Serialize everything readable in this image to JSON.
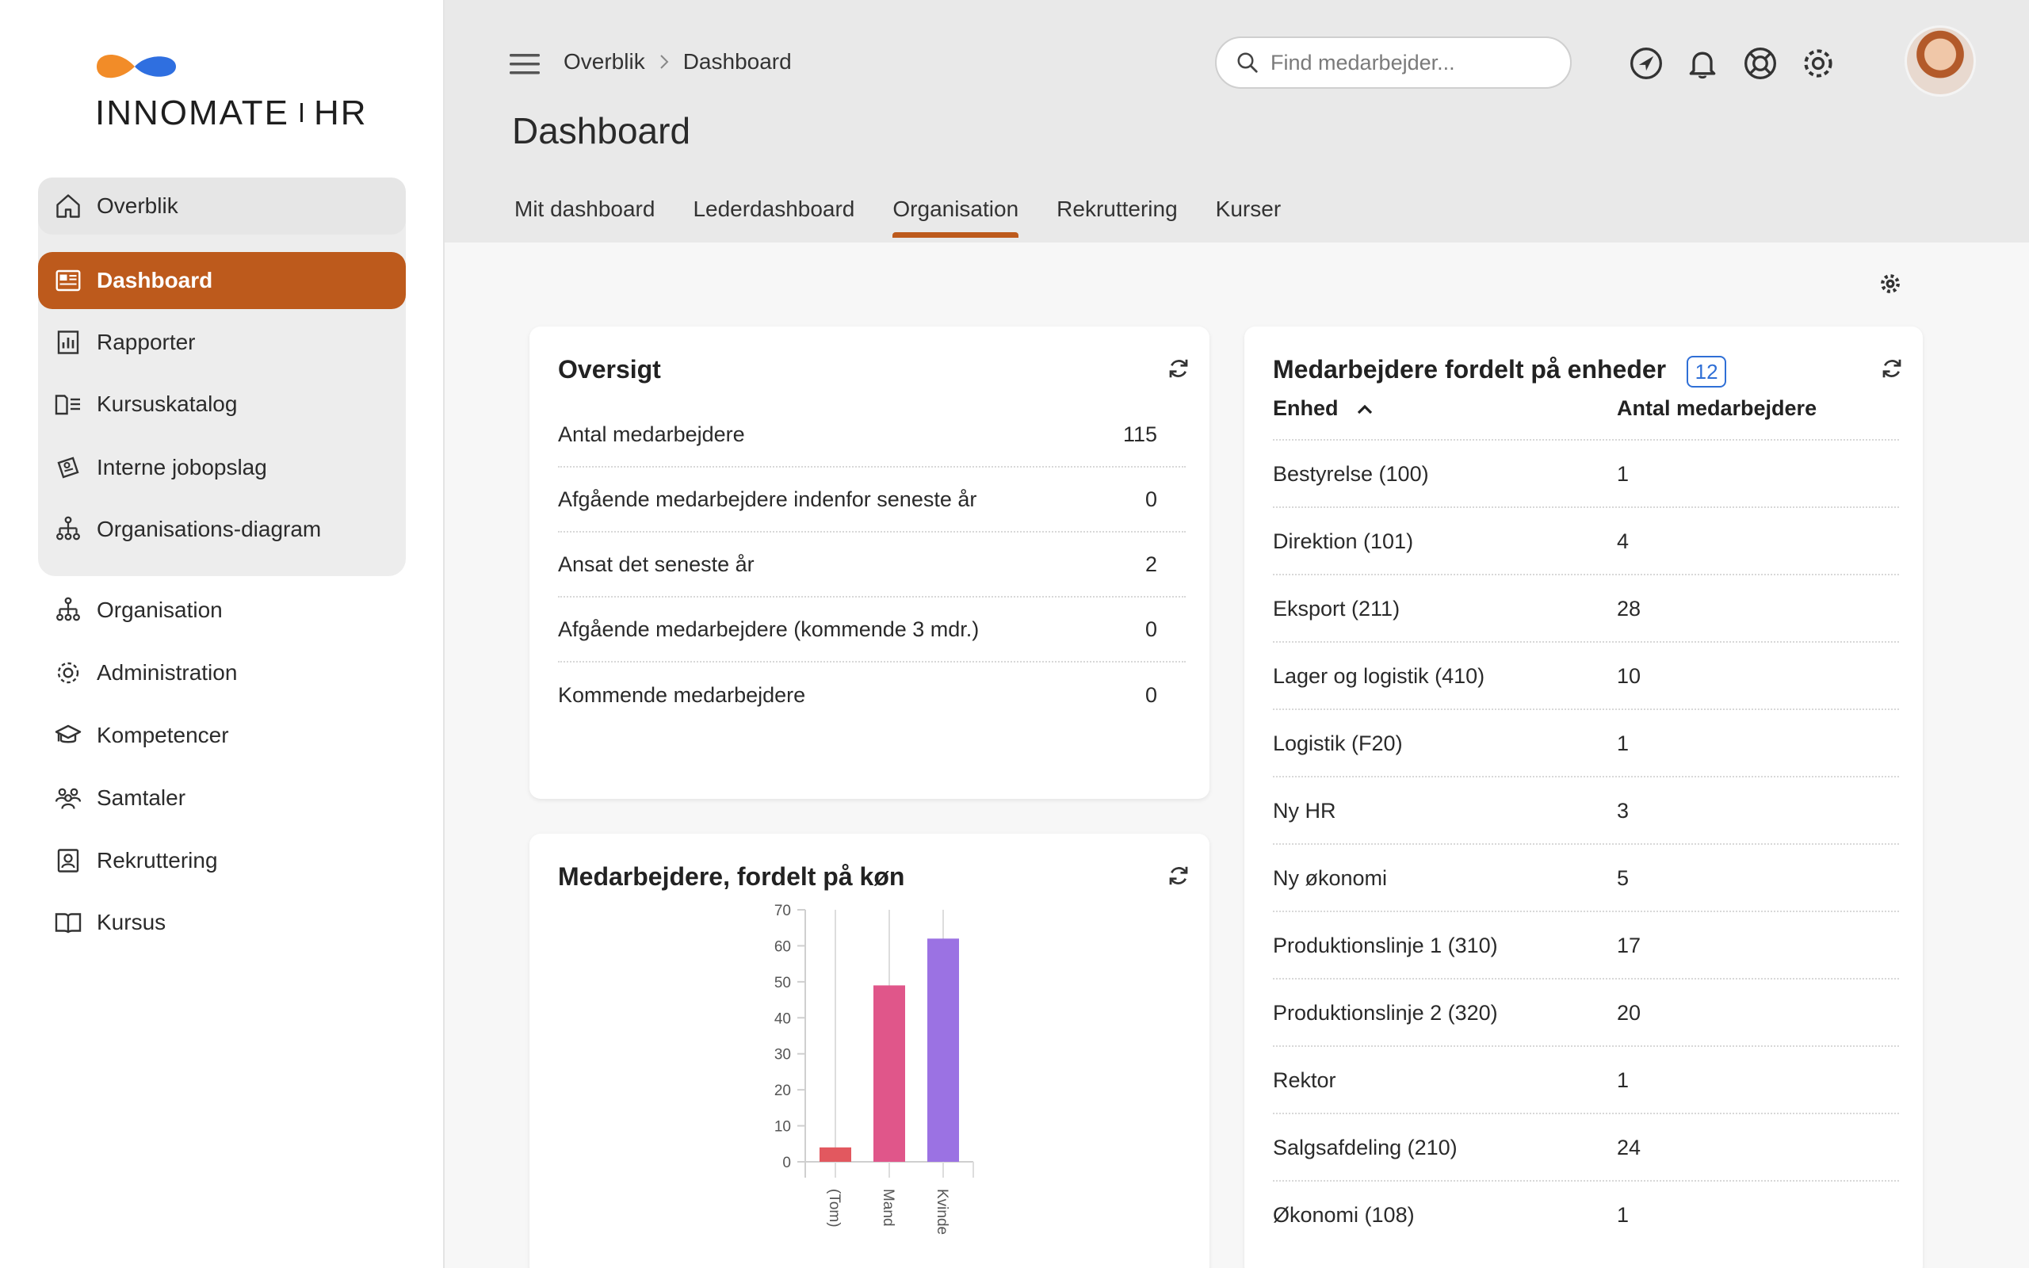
{
  "brand": {
    "name": "INNOMATE",
    "suffix": "HR"
  },
  "sidebar": {
    "group_items": [
      {
        "label": "Overblik",
        "icon": "home-icon"
      },
      {
        "label": "Dashboard",
        "icon": "dashboard-icon"
      },
      {
        "label": "Rapporter",
        "icon": "report-icon"
      },
      {
        "label": "Kursuskatalog",
        "icon": "catalog-icon"
      },
      {
        "label": "Interne jobopslag",
        "icon": "job-post-icon"
      },
      {
        "label": "Organisations-diagram",
        "icon": "org-chart-icon"
      }
    ],
    "items": [
      {
        "label": "Organisation",
        "icon": "org-chart-icon"
      },
      {
        "label": "Administration",
        "icon": "gear-icon"
      },
      {
        "label": "Kompetencer",
        "icon": "graduation-cap-icon"
      },
      {
        "label": "Samtaler",
        "icon": "people-icon"
      },
      {
        "label": "Rekruttering",
        "icon": "recruit-icon"
      },
      {
        "label": "Kursus",
        "icon": "book-icon"
      }
    ],
    "active_color": "#bd5a1c"
  },
  "header": {
    "breadcrumb": [
      "Overblik",
      "Dashboard"
    ],
    "title": "Dashboard",
    "search_placeholder": "Find medarbejder...",
    "icons": [
      "navigate-icon",
      "bell-icon",
      "lifebuoy-icon",
      "gear-icon"
    ],
    "tabs": [
      {
        "label": "Mit dashboard",
        "active": false
      },
      {
        "label": "Lederdashboard",
        "active": false
      },
      {
        "label": "Organisation",
        "active": true
      },
      {
        "label": "Rekruttering",
        "active": false
      },
      {
        "label": "Kurser",
        "active": false
      }
    ]
  },
  "overview": {
    "title": "Oversigt",
    "rows": [
      {
        "label": "Antal medarbejdere",
        "value": "115"
      },
      {
        "label": "Afgående medarbejdere indenfor seneste år",
        "value": "0"
      },
      {
        "label": "Ansat det seneste år",
        "value": "2"
      },
      {
        "label": "Afgående medarbejdere (kommende 3 mdr.)",
        "value": "0"
      },
      {
        "label": "Kommende medarbejdere",
        "value": "0"
      }
    ]
  },
  "units": {
    "title": "Medarbejdere fordelt på enheder",
    "count": "12",
    "col_unit": "Enhed",
    "col_count": "Antal medarbejdere",
    "rows": [
      {
        "unit": "Bestyrelse (100)",
        "count": "1"
      },
      {
        "unit": "Direktion (101)",
        "count": "4"
      },
      {
        "unit": "Eksport (211)",
        "count": "28"
      },
      {
        "unit": "Lager og logistik (410)",
        "count": "10"
      },
      {
        "unit": "Logistik (F20)",
        "count": "1"
      },
      {
        "unit": "Ny HR",
        "count": "3"
      },
      {
        "unit": "Ny økonomi",
        "count": "5"
      },
      {
        "unit": "Produktionslinje 1 (310)",
        "count": "17"
      },
      {
        "unit": "Produktionslinje 2 (320)",
        "count": "20"
      },
      {
        "unit": "Rektor",
        "count": "1"
      },
      {
        "unit": "Salgsafdeling (210)",
        "count": "24"
      },
      {
        "unit": "Økonomi (108)",
        "count": "1"
      }
    ]
  },
  "gender_card": {
    "title": "Medarbejdere, fordelt på køn"
  },
  "chart_data": {
    "type": "bar",
    "title": "Medarbejdere, fordelt på køn",
    "categories": [
      "(Tom)",
      "Mand",
      "Kvinde"
    ],
    "values": [
      4,
      49,
      62
    ],
    "colors": [
      "#e2585f",
      "#e0568a",
      "#9b72e3"
    ],
    "yticks": [
      "0",
      "10",
      "20",
      "30",
      "40",
      "50",
      "60",
      "70"
    ],
    "ylim": [
      0,
      70
    ],
    "grid": true,
    "legend": "none"
  }
}
